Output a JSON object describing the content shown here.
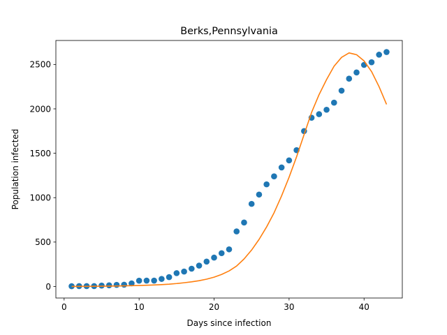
{
  "chart_data": {
    "type": "scatter",
    "title": "Berks,Pennsylvania",
    "xlabel": "Days since infection",
    "ylabel": "Population infected",
    "xlim": [
      -1.1,
      45.1
    ],
    "ylim": [
      -130,
      2770
    ],
    "xticks": [
      0,
      10,
      20,
      30,
      40
    ],
    "yticks": [
      0,
      500,
      1000,
      1500,
      2000,
      2500
    ],
    "grid": false,
    "legend": "none",
    "series": [
      {
        "kind": "scatter",
        "color": "#1f77b4",
        "x": [
          1,
          2,
          3,
          4,
          5,
          6,
          7,
          8,
          9,
          10,
          11,
          12,
          13,
          14,
          15,
          16,
          17,
          18,
          19,
          20,
          21,
          22,
          23,
          24,
          25,
          26,
          27,
          28,
          29,
          30,
          31,
          32,
          33,
          34,
          35,
          36,
          37,
          38,
          39,
          40,
          41,
          42,
          43
        ],
        "y": [
          3,
          4,
          4,
          4,
          10,
          13,
          18,
          20,
          35,
          65,
          66,
          66,
          85,
          105,
          150,
          168,
          200,
          235,
          280,
          325,
          375,
          418,
          620,
          720,
          930,
          1035,
          1150,
          1240,
          1340,
          1420,
          1535,
          1750,
          1900,
          1940,
          1990,
          2070,
          2205,
          2340,
          2410,
          2495,
          2525,
          2610,
          2640
        ]
      },
      {
        "kind": "line",
        "color": "#ff7f0e",
        "x": [
          1,
          2,
          3,
          4,
          5,
          6,
          7,
          8,
          9,
          10,
          11,
          12,
          13,
          14,
          15,
          16,
          17,
          18,
          19,
          20,
          21,
          22,
          23,
          24,
          25,
          26,
          27,
          28,
          29,
          30,
          31,
          32,
          33,
          34,
          35,
          36,
          37,
          38,
          39,
          40,
          41,
          42,
          43
        ],
        "y": [
          0,
          1,
          1,
          2,
          3,
          4,
          5,
          7,
          9,
          11,
          14,
          17,
          21,
          26,
          33,
          42,
          52,
          65,
          82,
          105,
          135,
          175,
          230,
          310,
          410,
          530,
          670,
          830,
          1020,
          1230,
          1460,
          1710,
          1960,
          2160,
          2330,
          2480,
          2580,
          2630,
          2610,
          2540,
          2420,
          2250,
          2050
        ]
      }
    ]
  }
}
